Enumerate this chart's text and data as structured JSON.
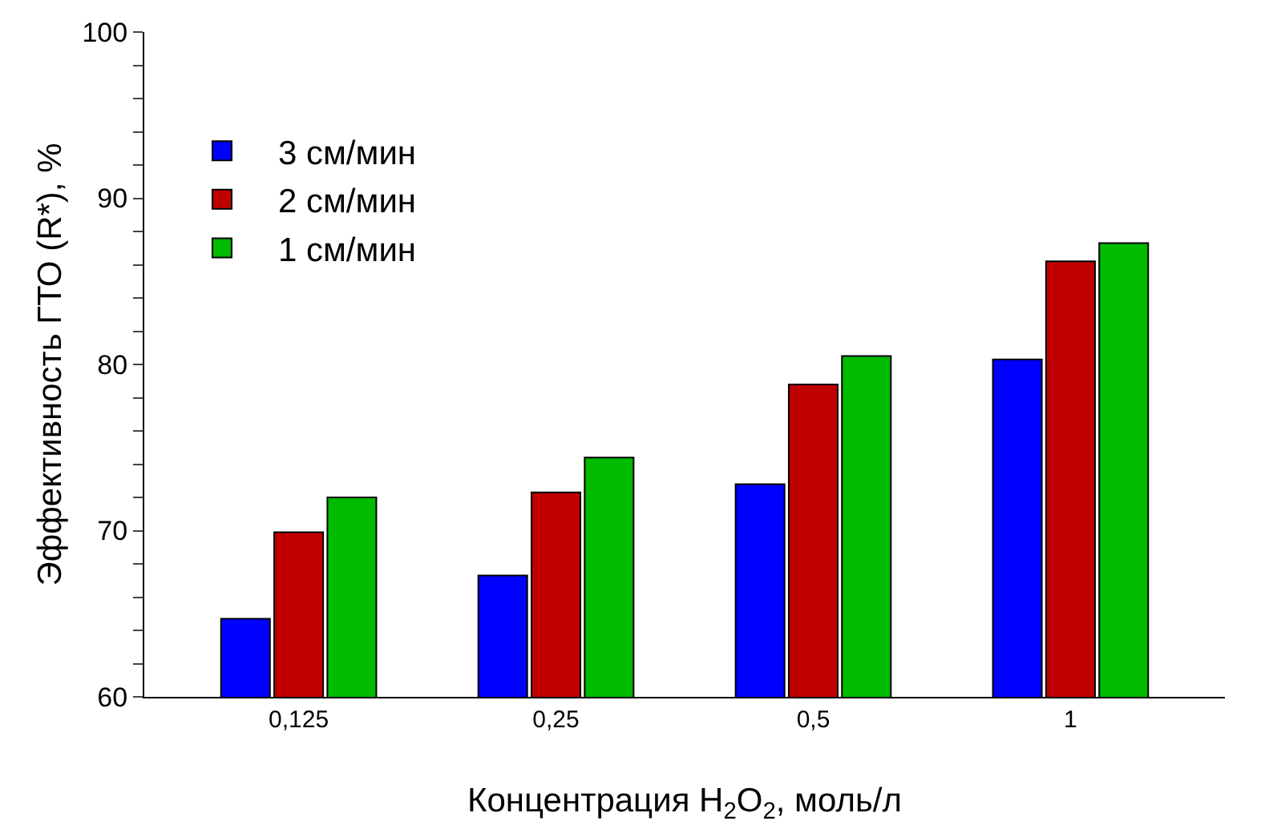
{
  "chart_data": {
    "type": "bar",
    "xlabel": "Концентрация H$_{2}$O$_{2}$, моль/л",
    "ylabel": "Эффективность ГТО (R*), %",
    "categories": [
      "0,125",
      "0,25",
      "0,5",
      "1"
    ],
    "series": [
      {
        "name": "3 см/мин",
        "color": "#0000ff",
        "values": [
          64.7,
          67.3,
          72.8,
          80.3
        ]
      },
      {
        "name": "2 см/мин",
        "color": "#c00000",
        "values": [
          69.9,
          72.3,
          78.8,
          86.2
        ]
      },
      {
        "name": "1 см/мин",
        "color": "#00bb00",
        "values": [
          72.0,
          74.4,
          80.5,
          87.3
        ]
      }
    ],
    "ylim": [
      60,
      100
    ],
    "yticks": [
      60,
      {
        "value": 62,
        "label": null
      },
      {
        "value": 64,
        "label": null
      },
      {
        "value": 66,
        "label": null
      },
      {
        "value": 68,
        "label": null
      },
      70,
      {
        "value": 72,
        "label": null
      },
      {
        "value": 74,
        "label": null
      },
      {
        "value": 76,
        "label": null
      },
      {
        "value": 78,
        "label": null
      },
      80,
      {
        "value": 82,
        "label": null
      },
      {
        "value": 84,
        "label": null
      },
      {
        "value": 86,
        "label": null
      },
      {
        "value": 88,
        "label": null
      },
      90,
      {
        "value": 92,
        "label": null
      },
      {
        "value": 94,
        "label": null
      },
      {
        "value": 96,
        "label": null
      },
      {
        "value": 98,
        "label": null
      },
      100
    ],
    "grid": false,
    "legend": "top left"
  }
}
